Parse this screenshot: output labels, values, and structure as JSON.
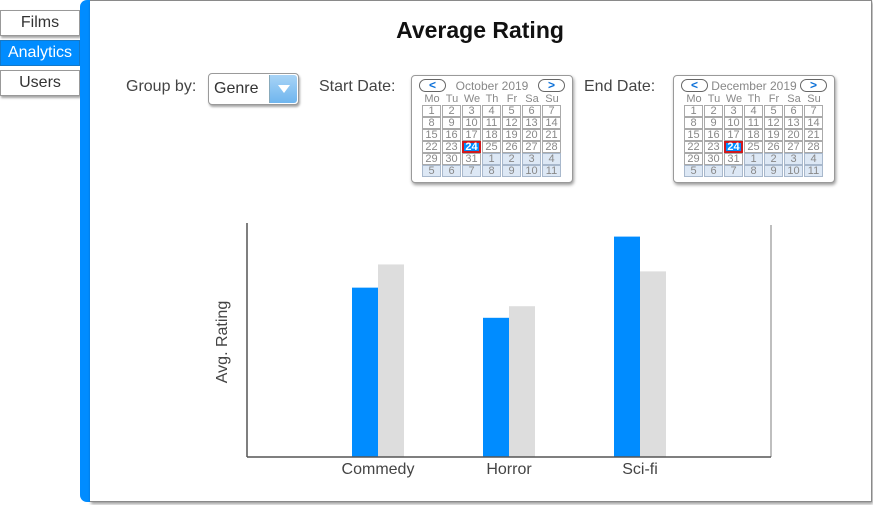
{
  "tabs": [
    {
      "label": "Films",
      "active": false
    },
    {
      "label": "Analytics",
      "active": true
    },
    {
      "label": "Users",
      "active": false
    }
  ],
  "page": {
    "title": "Average Rating",
    "group_by_label": "Group by:",
    "group_by_value": "Genre",
    "start_date_label": "Start Date:",
    "end_date_label": "End Date:"
  },
  "start_calendar": {
    "month": "October 2019",
    "prev": "<",
    "next": ">",
    "weekdays": [
      "Mo",
      "Tu",
      "We",
      "Th",
      "Fr",
      "Sa",
      "Su"
    ],
    "weeks": [
      [
        "1",
        "2",
        "3",
        "4",
        "5",
        "6",
        "7"
      ],
      [
        "8",
        "9",
        "10",
        "11",
        "12",
        "13",
        "14"
      ],
      [
        "15",
        "16",
        "17",
        "18",
        "19",
        "20",
        "21"
      ],
      [
        "22",
        "23",
        "24",
        "25",
        "26",
        "27",
        "28"
      ],
      [
        "29",
        "30",
        "31",
        "1",
        "2",
        "3",
        "4"
      ],
      [
        "5",
        "6",
        "7",
        "8",
        "9",
        "10",
        "11"
      ]
    ],
    "selected": "24"
  },
  "end_calendar": {
    "month": "December 2019",
    "prev": "<",
    "next": ">",
    "weekdays": [
      "Mo",
      "Tu",
      "We",
      "Th",
      "Fr",
      "Sa",
      "Su"
    ],
    "weeks": [
      [
        "1",
        "2",
        "3",
        "4",
        "5",
        "6",
        "7"
      ],
      [
        "8",
        "9",
        "10",
        "11",
        "12",
        "13",
        "14"
      ],
      [
        "15",
        "16",
        "17",
        "18",
        "19",
        "20",
        "21"
      ],
      [
        "22",
        "23",
        "24",
        "25",
        "26",
        "27",
        "28"
      ],
      [
        "29",
        "30",
        "31",
        "1",
        "2",
        "3",
        "4"
      ],
      [
        "5",
        "6",
        "7",
        "8",
        "9",
        "10",
        "11"
      ]
    ],
    "selected": "24"
  },
  "colors": {
    "accent": "#008cff",
    "series_primary": "#008cff",
    "series_secondary": "#dddddd",
    "selected_border": "#d0191d"
  },
  "chart_data": {
    "type": "bar",
    "ylabel": "Avg. Rating",
    "xlabel": "",
    "categories": [
      "Commedy",
      "Horror",
      "Sci-fi"
    ],
    "series": [
      {
        "values": [
          0.73,
          0.6,
          0.95
        ]
      },
      {
        "values": [
          0.83,
          0.65,
          0.8
        ]
      }
    ],
    "ylim": [
      0,
      1
    ],
    "grid": false
  }
}
